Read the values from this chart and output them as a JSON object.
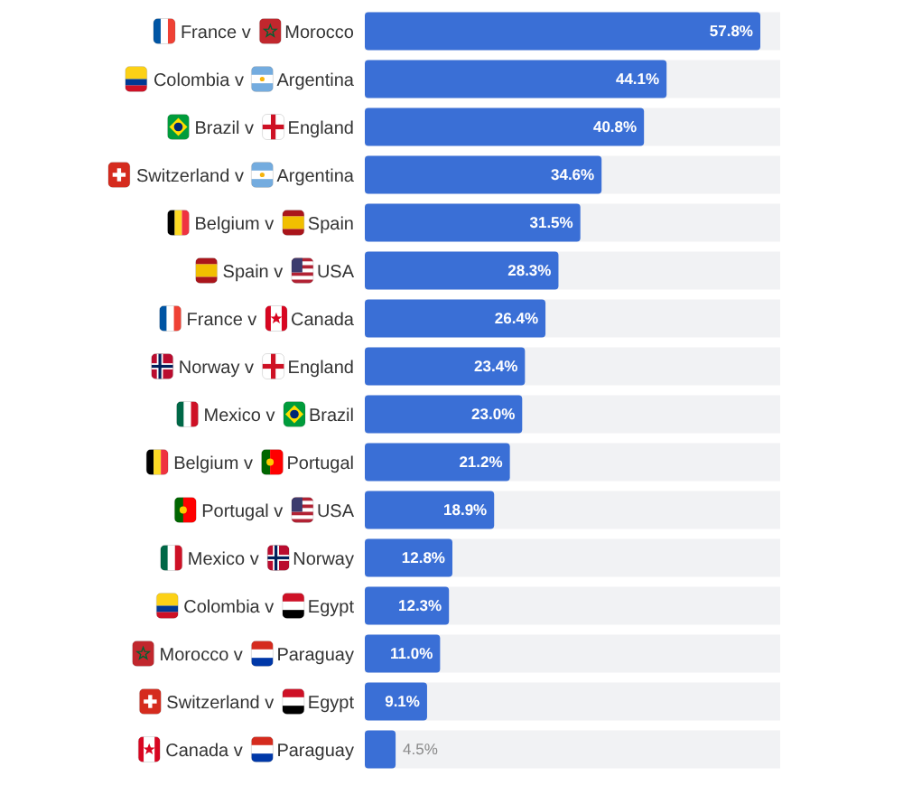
{
  "chart_data": {
    "type": "bar",
    "orientation": "horizontal",
    "categories": [
      "France v Morocco",
      "Colombia v Argentina",
      "Brazil v England",
      "Switzerland v Argentina",
      "Belgium v Spain",
      "Spain v USA",
      "France v Canada",
      "Norway v England",
      "Mexico v Brazil",
      "Belgium v Portugal",
      "Portugal v USA",
      "Mexico v Norway",
      "Colombia v Egypt",
      "Morocco v Paraguay",
      "Switzerland v Egypt",
      "Canada v Paraguay"
    ],
    "values": [
      57.8,
      44.1,
      40.8,
      34.6,
      31.5,
      28.3,
      26.4,
      23.4,
      23.0,
      21.2,
      18.9,
      12.8,
      12.3,
      11.0,
      9.1,
      4.5
    ],
    "value_labels": [
      "57.8%",
      "44.1%",
      "40.8%",
      "34.6%",
      "31.5%",
      "28.3%",
      "26.4%",
      "23.4%",
      "23.0%",
      "21.2%",
      "18.9%",
      "12.8%",
      "12.3%",
      "11.0%",
      "9.1%",
      "4.5%"
    ],
    "color": "#3a6fd6"
  }
}
